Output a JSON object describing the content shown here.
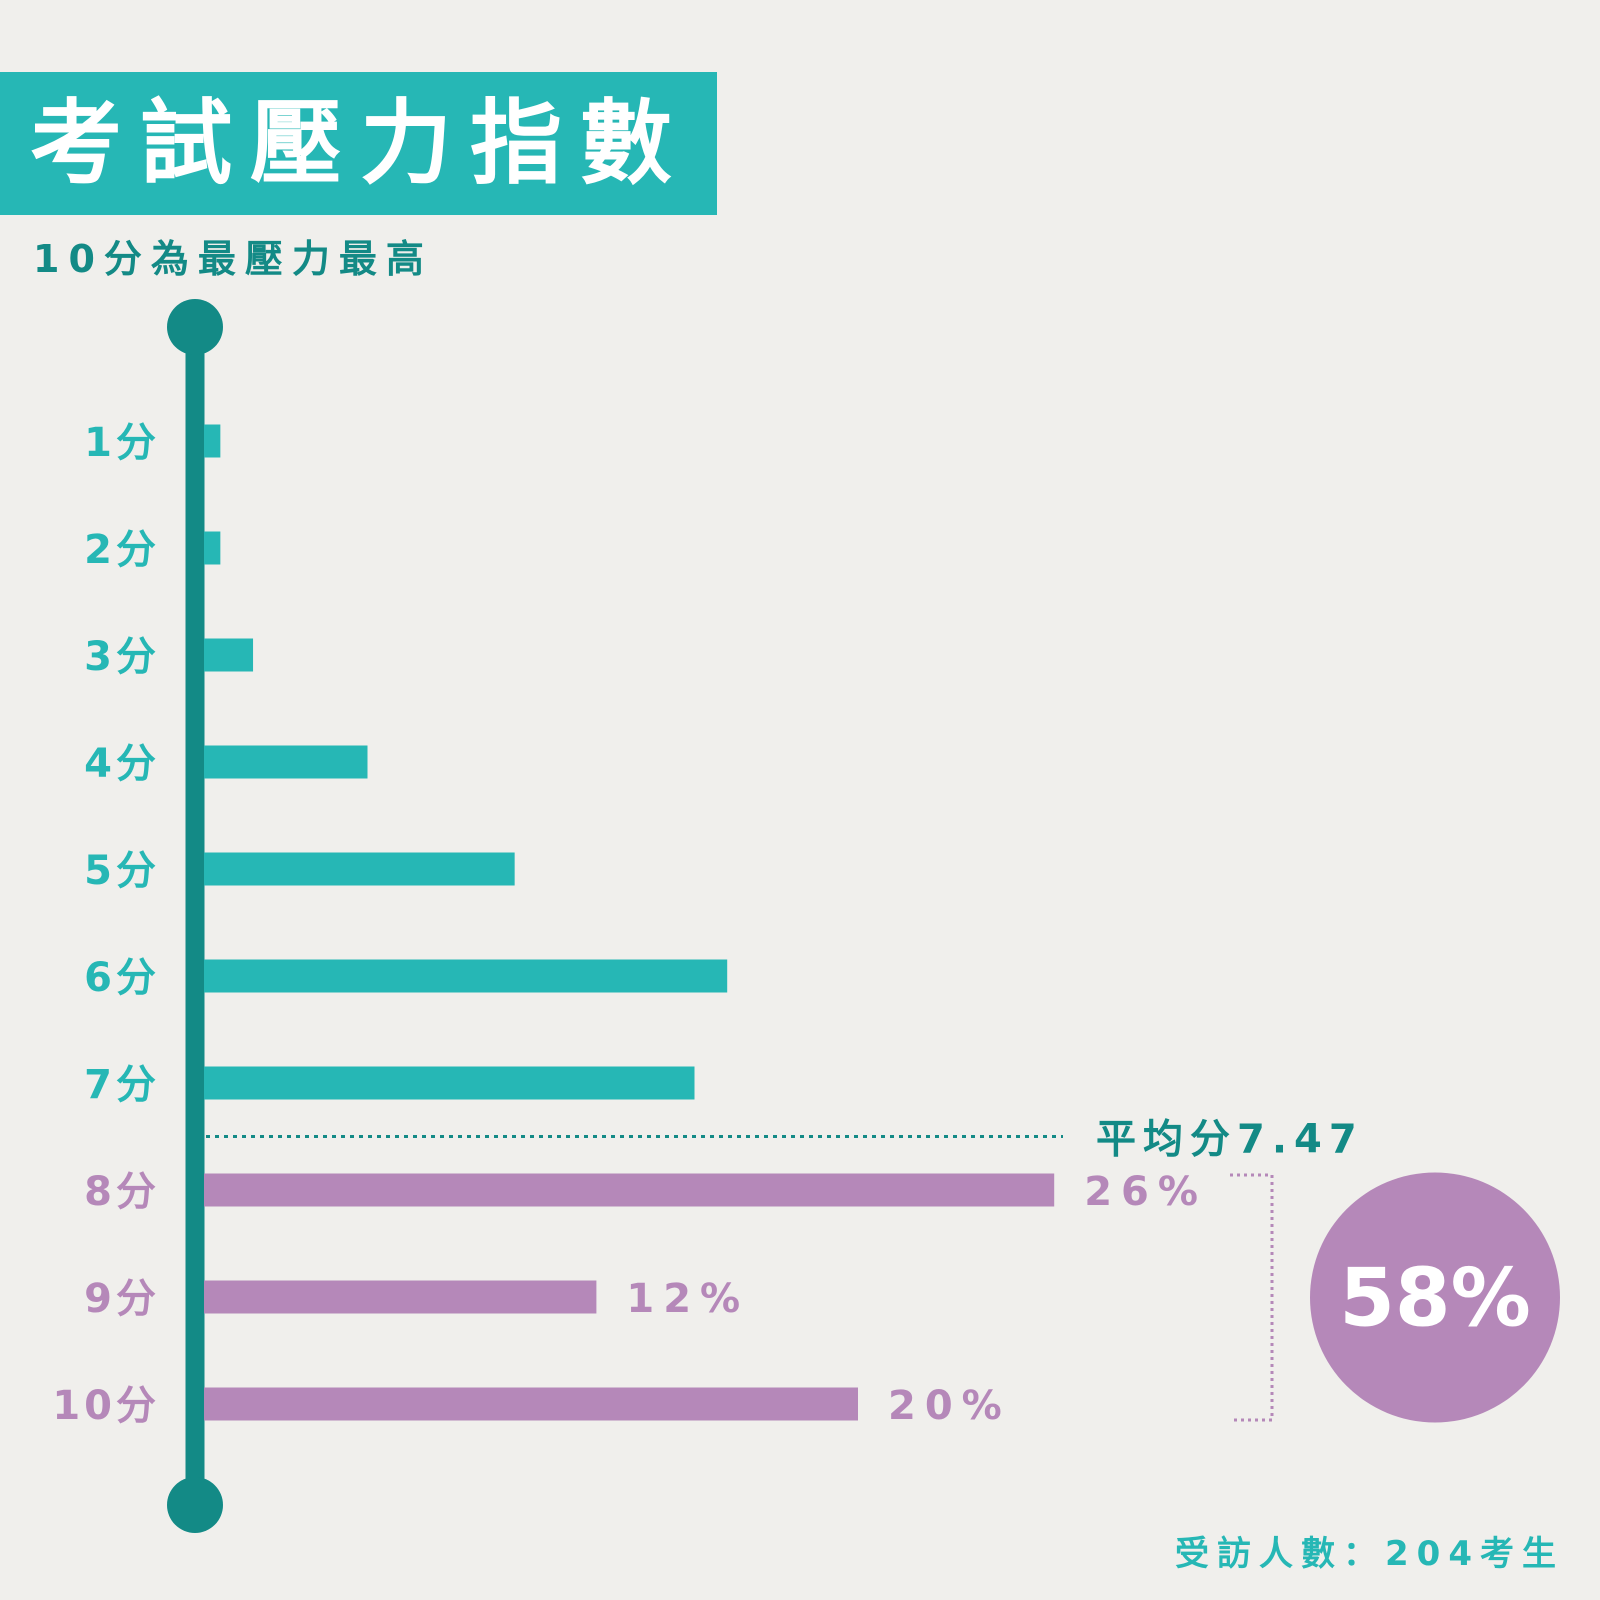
{
  "title": "考試壓力指數",
  "subtitle": "10分為最壓力最高",
  "footer": "受訪人數：204考生",
  "colors": {
    "background": "#f0efec",
    "teal": "#26b7b5",
    "dark_teal": "#138a86",
    "purple": "#b588b9"
  },
  "chart_data": {
    "type": "bar",
    "orientation": "horizontal",
    "xlim": [
      0,
      26
    ],
    "categories": [
      "1分",
      "2分",
      "3分",
      "4分",
      "5分",
      "6分",
      "7分",
      "8分",
      "9分",
      "10分"
    ],
    "values": [
      0.5,
      0.5,
      1.5,
      5,
      9.5,
      16,
      15,
      26,
      12,
      20
    ],
    "category_colors": [
      "teal",
      "teal",
      "teal",
      "teal",
      "teal",
      "teal",
      "teal",
      "purple",
      "purple",
      "purple"
    ],
    "data_labels": [
      "",
      "",
      "",
      "",
      "",
      "",
      "",
      "26%",
      "12%",
      "20%"
    ],
    "average": {
      "label": "平均分7.47",
      "value": 7.47
    },
    "combined": {
      "label": "58%",
      "categories": [
        "8分",
        "9分",
        "10分"
      ]
    }
  }
}
